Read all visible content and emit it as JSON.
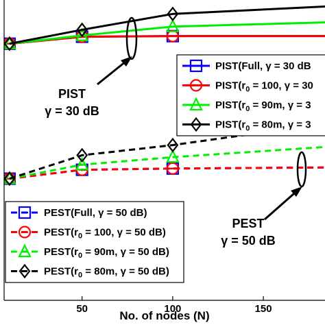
{
  "chart_data": {
    "type": "line",
    "title": "",
    "xlabel": "No. of nodes (N)",
    "ylabel": "",
    "xlim": [
      7,
      184
    ],
    "ylim": [
      0,
      474
    ],
    "x_ticks": [
      50,
      100,
      150
    ],
    "grid": false,
    "series": [
      {
        "name": "PIST(Full, γ = 30 dB",
        "group": "PIST",
        "color": "#0000ff",
        "dash": "solid",
        "marker": "square",
        "x": [
          10,
          50,
          100,
          200
        ],
        "y": [
          405,
          416,
          417,
          417
        ]
      },
      {
        "name": "PIST(r_0 = 100, γ = 30",
        "group": "PIST",
        "color": "#ff0000",
        "dash": "solid",
        "marker": "circle",
        "x": [
          10,
          50,
          100,
          200
        ],
        "y": [
          405,
          416,
          417,
          417
        ]
      },
      {
        "name": "PIST(r_0 = 90m, γ = 3",
        "group": "PIST",
        "color": "#00ee00",
        "dash": "solid",
        "marker": "triangle",
        "x": [
          10,
          50,
          100,
          200
        ],
        "y": [
          405,
          418,
          432,
          440
        ]
      },
      {
        "name": "PIST(r_0 = 80m, γ = 3",
        "group": "PIST",
        "color": "#000000",
        "dash": "solid",
        "marker": "diamond",
        "x": [
          10,
          50,
          100,
          200
        ],
        "y": [
          405,
          427,
          452,
          466
        ]
      },
      {
        "name": "PEST(Full, γ = 50 dB)",
        "group": "PEST",
        "color": "#0000ff",
        "dash": "dashed",
        "marker": "square",
        "x": [
          10,
          50,
          100,
          200
        ],
        "y": [
          192,
          206,
          208,
          210
        ]
      },
      {
        "name": "PEST(r_0 = 100, γ =  50 dB)",
        "group": "PEST",
        "color": "#ff0000",
        "dash": "dashed",
        "marker": "circle",
        "x": [
          10,
          50,
          100,
          200
        ],
        "y": [
          192,
          206,
          208,
          210
        ]
      },
      {
        "name": "PEST(r_0 = 90m, γ = 50 dB)",
        "group": "PEST",
        "color": "#00ee00",
        "dash": "dashed",
        "marker": "triangle",
        "x": [
          10,
          50,
          100,
          200
        ],
        "y": [
          192,
          214,
          226,
          245
        ]
      },
      {
        "name": "PEST(r_0 = 80m, γ = 50 dB)",
        "group": "PEST",
        "color": "#000000",
        "dash": "dashed",
        "marker": "diamond",
        "x": [
          10,
          50,
          100,
          200
        ],
        "y": [
          192,
          229,
          245,
          285
        ]
      }
    ],
    "legends": [
      {
        "placement": "right-middle",
        "labels": [
          "PIST(Full, γ = 30 dB",
          "PIST(r_0 = 100, γ = 30",
          "PIST(r_0 = 90m, γ = 3",
          "PIST(r_0 = 80m, γ = 3"
        ]
      },
      {
        "placement": "bottom-left",
        "labels": [
          "PEST(Full, γ = 50 dB)",
          "PEST(r_0 = 100, γ =  50 dB)",
          "PEST(r_0 = 90m, γ = 50 dB)",
          "PEST(r_0 = 80m, γ = 50 dB)"
        ]
      }
    ],
    "annotations": [
      {
        "line1": "PIST",
        "line2": "γ = 30 dB"
      },
      {
        "line1": "PEST",
        "line2": "γ = 50 dB"
      }
    ]
  }
}
